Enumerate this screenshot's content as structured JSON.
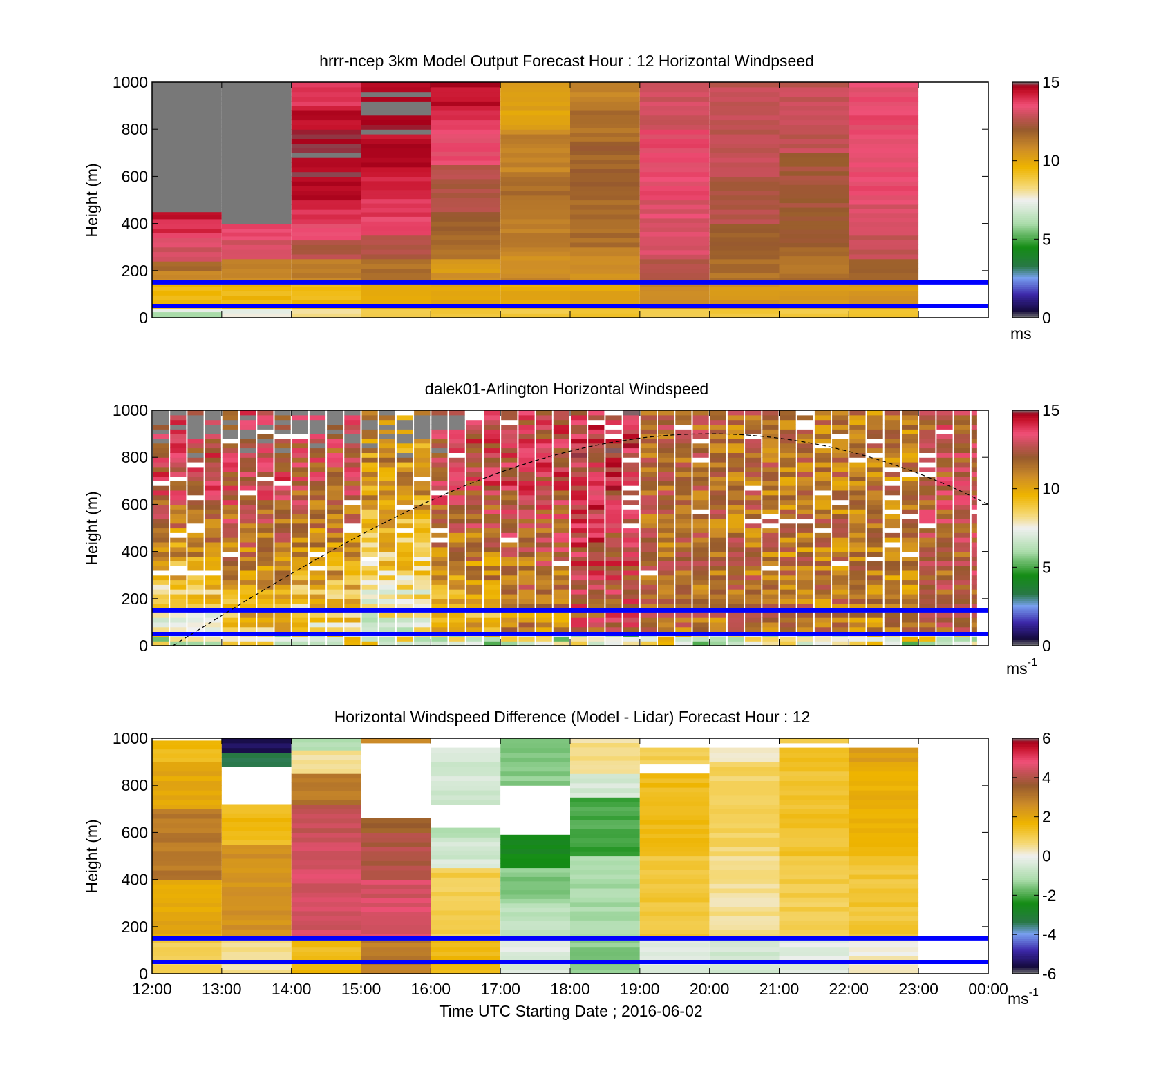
{
  "chart_data": [
    {
      "type": "heatmap",
      "title": "hrrr-ncep 3km Model Output   Forecast Hour : 12 Horizontal Windpseed",
      "ylabel": "Height (m)",
      "xlabel": "",
      "xlim": [
        12,
        24
      ],
      "ylim": [
        0,
        1000
      ],
      "y_ticks": [
        "0",
        "200",
        "400",
        "600",
        "800",
        "1000"
      ],
      "colorbar": {
        "ticks": [
          "0",
          "5",
          "10",
          "15"
        ],
        "unit": "ms",
        "range": [
          0,
          15
        ]
      },
      "hlines": [
        50,
        150
      ],
      "columns": [
        {
          "x0": 12,
          "x1": 13,
          "levels": [
            [
              0,
              25,
              6
            ],
            [
              25,
              40,
              7.5
            ],
            [
              40,
              60,
              9
            ],
            [
              60,
              150,
              9.5
            ],
            [
              150,
              200,
              11
            ],
            [
              200,
              240,
              11.5
            ],
            [
              240,
              300,
              13
            ],
            [
              300,
              360,
              13.5
            ],
            [
              360,
              420,
              14
            ],
            [
              420,
              450,
              14.5
            ],
            [
              450,
              1000,
              15.5
            ]
          ]
        },
        {
          "x0": 13,
          "x1": 14,
          "levels": [
            [
              0,
              40,
              7.5
            ],
            [
              40,
              150,
              9.5
            ],
            [
              150,
              250,
              11
            ],
            [
              250,
              330,
              13
            ],
            [
              330,
              380,
              13.5
            ],
            [
              380,
              400,
              14
            ],
            [
              400,
              1000,
              15.5
            ]
          ]
        },
        {
          "x0": 14,
          "x1": 15,
          "levels": [
            [
              0,
              40,
              8
            ],
            [
              40,
              150,
              9.5
            ],
            [
              150,
              250,
              11
            ],
            [
              250,
              330,
              12.5
            ],
            [
              330,
              400,
              13.5
            ],
            [
              400,
              480,
              14
            ],
            [
              480,
              600,
              14.5
            ],
            [
              600,
              800,
              14.8
            ],
            [
              800,
              900,
              14.5
            ],
            [
              900,
              1000,
              14
            ]
          ]
        },
        {
          "x0": 15,
          "x1": 16,
          "levels": [
            [
              0,
              40,
              9
            ],
            [
              40,
              150,
              10
            ],
            [
              150,
              250,
              11.5
            ],
            [
              250,
              350,
              12.5
            ],
            [
              350,
              430,
              13.5
            ],
            [
              430,
              600,
              14
            ],
            [
              600,
              780,
              14.5
            ],
            [
              780,
              1000,
              14.8
            ]
          ]
        },
        {
          "x0": 16,
          "x1": 17,
          "levels": [
            [
              0,
              40,
              9
            ],
            [
              40,
              150,
              10
            ],
            [
              150,
              250,
              10.5
            ],
            [
              250,
              350,
              11.5
            ],
            [
              350,
              450,
              12
            ],
            [
              450,
              650,
              12.5
            ],
            [
              650,
              800,
              13.5
            ],
            [
              800,
              900,
              14
            ],
            [
              900,
              1000,
              14.5
            ]
          ]
        },
        {
          "x0": 17,
          "x1": 18,
          "levels": [
            [
              0,
              40,
              9
            ],
            [
              40,
              150,
              10
            ],
            [
              150,
              300,
              10.8
            ],
            [
              300,
              500,
              11.2
            ],
            [
              500,
              600,
              11.5
            ],
            [
              600,
              800,
              11
            ],
            [
              800,
              1000,
              10.2
            ]
          ]
        },
        {
          "x0": 18,
          "x1": 19,
          "levels": [
            [
              0,
              40,
              9
            ],
            [
              40,
              150,
              10
            ],
            [
              150,
              300,
              10.8
            ],
            [
              300,
              500,
              11.5
            ],
            [
              500,
              750,
              11.8
            ],
            [
              750,
              880,
              11.5
            ],
            [
              880,
              1000,
              11
            ]
          ]
        },
        {
          "x0": 19,
          "x1": 20,
          "levels": [
            [
              0,
              40,
              9
            ],
            [
              40,
              150,
              11
            ],
            [
              150,
              250,
              12.5
            ],
            [
              250,
              500,
              13.2
            ],
            [
              500,
              800,
              13.5
            ],
            [
              800,
              1000,
              13
            ]
          ]
        },
        {
          "x0": 20,
          "x1": 21,
          "levels": [
            [
              0,
              40,
              9
            ],
            [
              40,
              150,
              10.5
            ],
            [
              150,
              250,
              11.5
            ],
            [
              250,
              400,
              12
            ],
            [
              400,
              600,
              12.5
            ],
            [
              600,
              1000,
              12.8
            ]
          ]
        },
        {
          "x0": 21,
          "x1": 22,
          "levels": [
            [
              0,
              40,
              9
            ],
            [
              40,
              150,
              10.5
            ],
            [
              150,
              300,
              11.5
            ],
            [
              300,
              450,
              12
            ],
            [
              450,
              700,
              12.2
            ],
            [
              700,
              1000,
              12.8
            ]
          ]
        },
        {
          "x0": 22,
          "x1": 23,
          "levels": [
            [
              0,
              40,
              9
            ],
            [
              40,
              150,
              10.5
            ],
            [
              150,
              250,
              12
            ],
            [
              250,
              350,
              12.8
            ],
            [
              350,
              500,
              13.2
            ],
            [
              500,
              1000,
              13.5
            ]
          ]
        }
      ]
    },
    {
      "type": "heatmap",
      "title": "dalek01-Arlington  Horizontal Windspeed",
      "ylabel": "Height (m)",
      "xlabel": "",
      "xlim": [
        12,
        24
      ],
      "ylim": [
        0,
        1000
      ],
      "y_ticks": [
        "0",
        "200",
        "400",
        "600",
        "800",
        "1000"
      ],
      "colorbar": {
        "ticks": [
          "0",
          "5",
          "10",
          "15"
        ],
        "unit": "ms",
        "unit_sup": "-1",
        "range": [
          0,
          15
        ]
      },
      "hlines": [
        50,
        150
      ],
      "x_end": 23.85,
      "hour_profiles": [
        {
          "hour": 12,
          "low": 7,
          "high": 13
        },
        {
          "hour": 13,
          "low": 9,
          "high": 13
        },
        {
          "hour": 14,
          "low": 8,
          "high": 12.5
        },
        {
          "hour": 15,
          "low": 7,
          "high": 10.5
        },
        {
          "hour": 16,
          "low": 9,
          "high": 13
        },
        {
          "hour": 17,
          "low": 10.5,
          "high": 13
        },
        {
          "hour": 18,
          "low": 12.5,
          "high": 13.5
        },
        {
          "hour": 19,
          "low": 11.5,
          "high": 11.8
        },
        {
          "hour": 20,
          "low": 11.5,
          "high": 11.5
        },
        {
          "hour": 21,
          "low": 11.2,
          "high": 11.3
        },
        {
          "hour": 22,
          "low": 11,
          "high": 11.2
        },
        {
          "hour": 23,
          "low": 12,
          "high": 12.5
        }
      ],
      "gap_fraction": 0.06,
      "gray_top_before_hour": 16.5,
      "curve": {
        "x0": 12.3,
        "x_peak": 20,
        "peak": 900,
        "x_end": 24,
        "end": 600
      }
    },
    {
      "type": "heatmap",
      "title": "Horizontal Windspeed Difference (Model - Lidar) Forecast Hour : 12",
      "ylabel": "Height (m)",
      "xlabel": "Time UTC  Starting Date ; 2016-06-02",
      "xlim": [
        12,
        24
      ],
      "ylim": [
        0,
        1000
      ],
      "x_ticks": [
        "12:00",
        "13:00",
        "14:00",
        "15:00",
        "16:00",
        "17:00",
        "18:00",
        "19:00",
        "20:00",
        "21:00",
        "22:00",
        "23:00",
        "00:00"
      ],
      "y_ticks": [
        "0",
        "200",
        "400",
        "600",
        "800",
        "1000"
      ],
      "colorbar": {
        "ticks": [
          "-6",
          "-4",
          "-2",
          "0",
          "2",
          "4",
          "6"
        ],
        "unit": "ms",
        "unit_sup": "-1",
        "range": [
          -6,
          6
        ]
      },
      "hlines": [
        50,
        150
      ],
      "columns": [
        {
          "x0": 12,
          "x1": 13,
          "top": 990,
          "levels": [
            [
              0,
              150,
              1
            ],
            [
              150,
              400,
              2
            ],
            [
              400,
              700,
              3
            ],
            [
              700,
              900,
              2
            ],
            [
              900,
              990,
              1.5
            ]
          ]
        },
        {
          "x0": 13,
          "x1": 14,
          "top": 1000,
          "levels": [
            [
              0,
              150,
              0.5
            ],
            [
              150,
              550,
              2.5
            ],
            [
              550,
              720,
              1.5
            ],
            [
              880,
              940,
              -3.5
            ],
            [
              940,
              1000,
              -5.5
            ]
          ]
        },
        {
          "x0": 14,
          "x1": 15,
          "top": 1000,
          "levels": [
            [
              0,
              150,
              1.5
            ],
            [
              150,
              600,
              4.5
            ],
            [
              600,
              720,
              4.2
            ],
            [
              720,
              850,
              3
            ],
            [
              850,
              950,
              0.5
            ],
            [
              950,
              1000,
              -1
            ]
          ]
        },
        {
          "x0": 15,
          "x1": 16,
          "top": 1000,
          "levels": [
            [
              0,
              150,
              3
            ],
            [
              150,
              400,
              4.5
            ],
            [
              400,
              600,
              4
            ],
            [
              600,
              660,
              3.5
            ],
            [
              980,
              1000,
              2.5
            ]
          ]
        },
        {
          "x0": 16,
          "x1": 17,
          "top": 960,
          "levels": [
            [
              0,
              150,
              1.5
            ],
            [
              150,
              450,
              1
            ],
            [
              450,
              580,
              -0.5
            ],
            [
              580,
              620,
              -1
            ],
            [
              720,
              960,
              -0.5
            ]
          ]
        },
        {
          "x0": 17,
          "x1": 18,
          "top": 1000,
          "levels": [
            [
              0,
              150,
              -0.3
            ],
            [
              150,
              300,
              -0.8
            ],
            [
              300,
              450,
              -1.5
            ],
            [
              450,
              590,
              -2.5
            ],
            [
              800,
              1000,
              -1.5
            ]
          ]
        },
        {
          "x0": 18,
          "x1": 19,
          "top": 1000,
          "levels": [
            [
              0,
              150,
              -1.5
            ],
            [
              150,
              500,
              -1.2
            ],
            [
              500,
              750,
              -2
            ],
            [
              750,
              850,
              -0.5
            ],
            [
              850,
              1000,
              0.5
            ]
          ]
        },
        {
          "x0": 19,
          "x1": 20,
          "top": 960,
          "levels": [
            [
              0,
              150,
              -0.2
            ],
            [
              150,
              500,
              1.2
            ],
            [
              500,
              850,
              1.5
            ],
            [
              890,
              960,
              1
            ]
          ]
        },
        {
          "x0": 20,
          "x1": 21,
          "top": 960,
          "levels": [
            [
              0,
              150,
              -0.5
            ],
            [
              150,
              500,
              0.5
            ],
            [
              500,
              900,
              0.8
            ],
            [
              900,
              960,
              0.3
            ]
          ]
        },
        {
          "x0": 21,
          "x1": 22,
          "top": 1000,
          "levels": [
            [
              0,
              150,
              -0.2
            ],
            [
              150,
              500,
              1
            ],
            [
              500,
              960,
              1.3
            ],
            [
              980,
              1000,
              1
            ]
          ]
        },
        {
          "x0": 22,
          "x1": 23,
          "top": 960,
          "levels": [
            [
              0,
              150,
              0.2
            ],
            [
              150,
              500,
              1.2
            ],
            [
              500,
              900,
              1.8
            ],
            [
              900,
              960,
              2.2
            ]
          ]
        }
      ]
    }
  ]
}
